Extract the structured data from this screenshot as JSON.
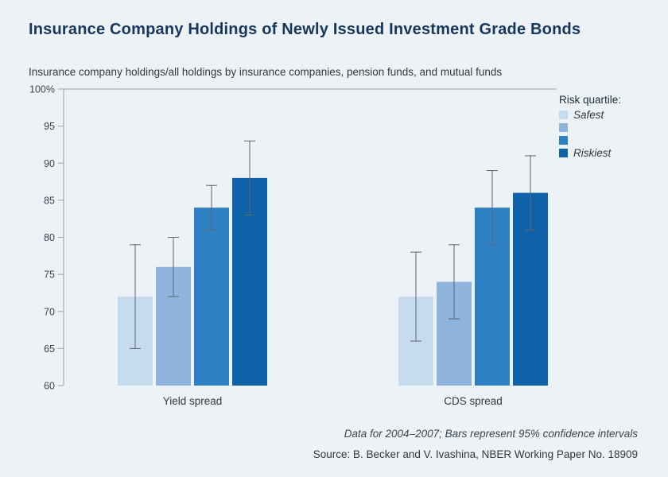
{
  "page": {
    "title": "Insurance Company Holdings of Newly Issued Investment Grade Bonds",
    "subtitle": "Insurance company holdings/all holdings by insurance companies, pension funds, and mutual funds",
    "note": "Data for 2004–2007; Bars represent 95% confidence intervals",
    "source": "Source: B. Becker and V. Ivashina, NBER Working Paper No. 18909"
  },
  "legend": {
    "title": "Risk quartile:",
    "items": [
      {
        "label": "Safest",
        "color": "#c7dbef"
      },
      {
        "label": "",
        "color": "#8fb4de"
      },
      {
        "label": "",
        "color": "#2e80c4"
      },
      {
        "label": "Riskiest",
        "color": "#0f62a9"
      }
    ]
  },
  "chart_data": {
    "type": "bar",
    "title": "Insurance Company Holdings of Newly Issued Investment Grade Bonds",
    "subtitle": "Insurance company holdings/all holdings by insurance companies, pension funds, and mutual funds",
    "categories": [
      "Yield spread",
      "CDS spread"
    ],
    "series": [
      {
        "name": "Risk quartile 1 (Safest)",
        "color": "#c7dbef",
        "values": [
          72,
          72
        ],
        "ci": [
          [
            65,
            79
          ],
          [
            66,
            78
          ]
        ]
      },
      {
        "name": "Risk quartile 2",
        "color": "#8fb4de",
        "values": [
          76,
          74
        ],
        "ci": [
          [
            72,
            80
          ],
          [
            69,
            79
          ]
        ]
      },
      {
        "name": "Risk quartile 3",
        "color": "#2e80c4",
        "values": [
          84,
          84
        ],
        "ci": [
          [
            81,
            87
          ],
          [
            79,
            89
          ]
        ]
      },
      {
        "name": "Risk quartile 4 (Riskiest)",
        "color": "#0f62a9",
        "values": [
          88,
          86
        ],
        "ci": [
          [
            83,
            93
          ],
          [
            81,
            91
          ]
        ]
      }
    ],
    "xlabel": "",
    "ylabel": "%",
    "ylim": [
      60,
      100
    ],
    "yticks": [
      60,
      65,
      70,
      75,
      80,
      85,
      90,
      95,
      100
    ],
    "ytick_labels": [
      "60",
      "65",
      "70",
      "75",
      "80",
      "85",
      "90",
      "95",
      "100%"
    ],
    "grid": false,
    "legend_position": "top-right",
    "error_bars": "95% confidence intervals",
    "axis_color": "#9aa2a9",
    "errorbar_color": "#5f666c",
    "tick_text_color": "#3c444c"
  }
}
